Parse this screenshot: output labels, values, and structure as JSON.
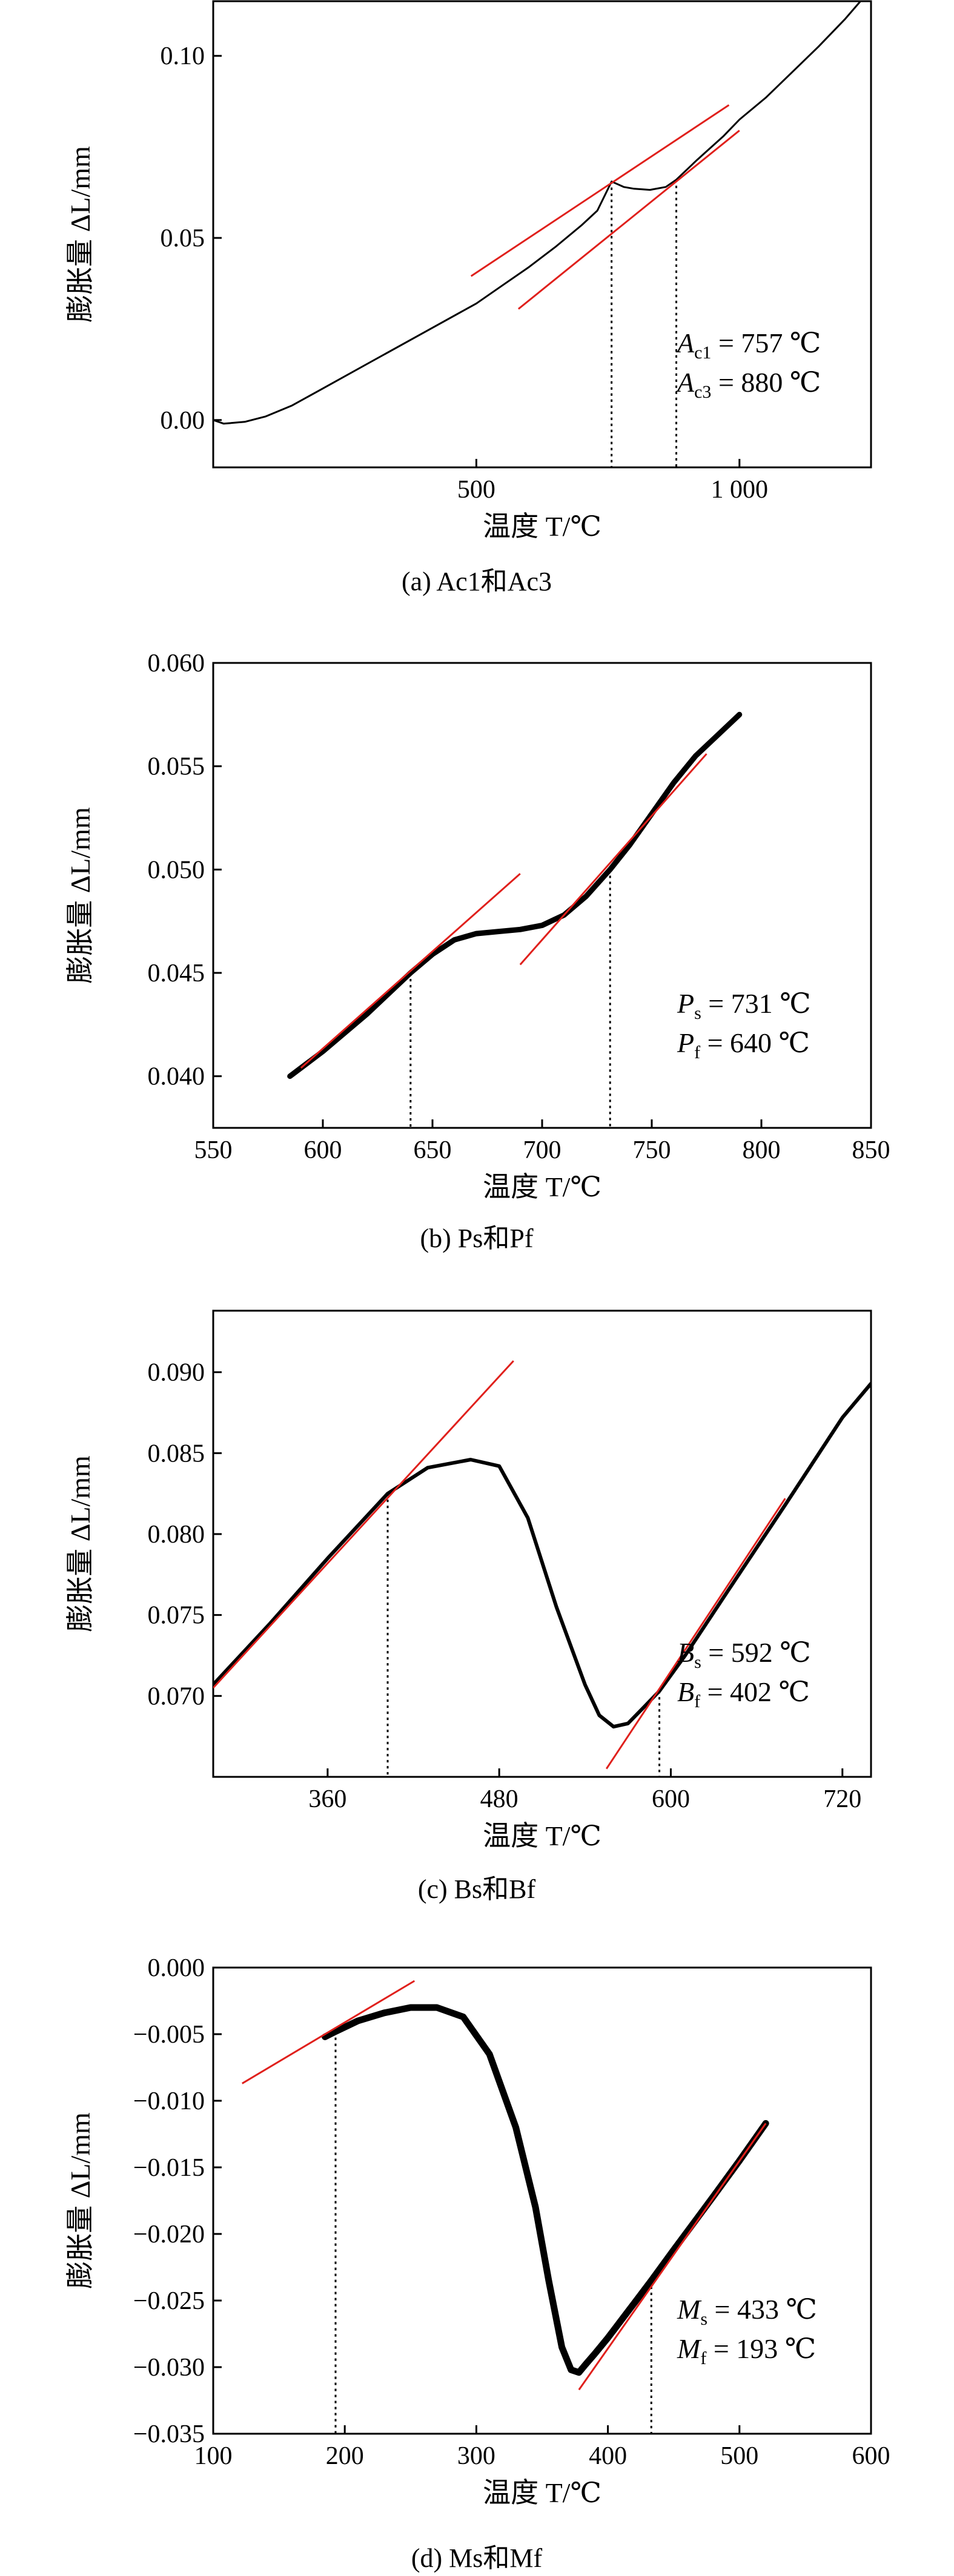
{
  "chart_data": [
    {
      "id": "a",
      "type": "line",
      "caption": "(a) Ac1和Ac3",
      "xlabel": "温度 T/℃",
      "ylabel": "膨胀量 ΔL/mm",
      "xlim": [
        0,
        1250
      ],
      "ylim": [
        -0.013,
        0.115
      ],
      "xticks": [
        500,
        1000
      ],
      "xtick_labels": [
        "500",
        "1 000"
      ],
      "yticks": [
        0.0,
        0.05,
        0.1
      ],
      "ytick_labels": [
        "0.00",
        "0.05",
        "0.10"
      ],
      "series": [
        {
          "x": [
            0,
            20,
            60,
            100,
            150,
            200,
            300,
            400,
            500,
            550,
            600,
            650,
            700,
            730,
            757,
            780,
            800,
            830,
            860,
            880,
            920,
            970,
            1000,
            1050,
            1100,
            1150,
            1200,
            1230
          ],
          "y": [
            0.0,
            -0.001,
            -0.0005,
            0.001,
            0.004,
            0.008,
            0.016,
            0.024,
            0.032,
            0.037,
            0.042,
            0.0475,
            0.0535,
            0.0575,
            0.0655,
            0.064,
            0.0635,
            0.0632,
            0.064,
            0.066,
            0.0715,
            0.078,
            0.0825,
            0.0885,
            0.0955,
            0.1025,
            0.11,
            0.115
          ]
        }
      ],
      "tangents": [
        {
          "x": [
            490,
            980
          ],
          "y": [
            0.0395,
            0.0865
          ]
        },
        {
          "x": [
            580,
            1000
          ],
          "y": [
            0.0305,
            0.0795
          ]
        }
      ],
      "markers": [
        {
          "x": 757,
          "y": 0.0655
        },
        {
          "x": 880,
          "y": 0.066
        }
      ],
      "annotations": [
        {
          "symbol": "A",
          "sub": "c1",
          "text": " = 757 ℃"
        },
        {
          "symbol": "A",
          "sub": "c3",
          "text": " = 880 ℃"
        }
      ]
    },
    {
      "id": "b",
      "type": "line",
      "caption": "(b) Ps和Pf",
      "xlabel": "温度 T/℃",
      "ylabel": "膨胀量 ΔL/mm",
      "xlim": [
        550,
        850
      ],
      "ylim": [
        0.0375,
        0.06
      ],
      "xticks": [
        550,
        600,
        650,
        700,
        750,
        800,
        850
      ],
      "xtick_labels": [
        "550",
        "600",
        "650",
        "700",
        "750",
        "800",
        "850"
      ],
      "yticks": [
        0.04,
        0.045,
        0.05,
        0.055,
        0.06
      ],
      "ytick_labels": [
        "0.040",
        "0.045",
        "0.050",
        "0.055",
        "0.060"
      ],
      "series": [
        {
          "x": [
            585,
            600,
            620,
            640,
            650,
            660,
            670,
            680,
            690,
            700,
            710,
            720,
            731,
            740,
            750,
            760,
            770,
            780,
            790
          ],
          "y": [
            0.04,
            0.0412,
            0.043,
            0.045,
            0.0459,
            0.0466,
            0.0469,
            0.047,
            0.0471,
            0.0473,
            0.0478,
            0.0487,
            0.05,
            0.0512,
            0.0527,
            0.0542,
            0.0555,
            0.0565,
            0.0575
          ]
        }
      ],
      "tangents": [
        {
          "x": [
            590,
            690
          ],
          "y": [
            0.0404,
            0.0498
          ]
        },
        {
          "x": [
            690,
            775
          ],
          "y": [
            0.0454,
            0.0556
          ]
        }
      ],
      "markers": [
        {
          "x": 640,
          "y": 0.045
        },
        {
          "x": 731,
          "y": 0.05
        }
      ],
      "annotations": [
        {
          "symbol": "P",
          "sub": "s",
          "text": " = 731 ℃"
        },
        {
          "symbol": "P",
          "sub": "f",
          "text": " = 640 ℃"
        }
      ]
    },
    {
      "id": "c",
      "type": "line",
      "caption": "(c) Bs和Bf",
      "xlabel": "温度 T/℃",
      "ylabel": "膨胀量 ΔL/mm",
      "xlim": [
        280,
        740
      ],
      "ylim": [
        0.065,
        0.0938
      ],
      "xticks": [
        360,
        480,
        600,
        720
      ],
      "xtick_labels": [
        "360",
        "480",
        "600",
        "720"
      ],
      "yticks": [
        0.07,
        0.075,
        0.08,
        0.085,
        0.09
      ],
      "ytick_labels": [
        "0.070",
        "0.075",
        "0.080",
        "0.085",
        "0.090"
      ],
      "series": [
        {
          "x": [
            280,
            320,
            360,
            402,
            430,
            460,
            480,
            500,
            520,
            540,
            550,
            560,
            570,
            580,
            592,
            610,
            640,
            680,
            720,
            740
          ],
          "y": [
            0.0707,
            0.0745,
            0.0785,
            0.0825,
            0.0841,
            0.0846,
            0.0842,
            0.081,
            0.0755,
            0.0707,
            0.0688,
            0.0681,
            0.0683,
            0.0692,
            0.0703,
            0.0725,
            0.0765,
            0.0818,
            0.0872,
            0.0893
          ]
        }
      ],
      "tangents": [
        {
          "x": [
            280,
            490
          ],
          "y": [
            0.0705,
            0.0907
          ]
        },
        {
          "x": [
            555,
            680
          ],
          "y": [
            0.0655,
            0.0822
          ]
        }
      ],
      "markers": [
        {
          "x": 402,
          "y": 0.0825
        },
        {
          "x": 592,
          "y": 0.0703
        }
      ],
      "annotations": [
        {
          "symbol": "B",
          "sub": "s",
          "text": " = 592 ℃"
        },
        {
          "symbol": "B",
          "sub": "f",
          "text": " = 402 ℃"
        }
      ]
    },
    {
      "id": "d",
      "type": "line",
      "caption": "(d) Ms和Mf",
      "xlabel": "温度 T/℃",
      "ylabel": "膨胀量 ΔL/mm",
      "xlim": [
        100,
        600
      ],
      "ylim": [
        -0.035,
        0.0
      ],
      "xticks": [
        100,
        200,
        300,
        400,
        500,
        600
      ],
      "xtick_labels": [
        "100",
        "200",
        "300",
        "400",
        "500",
        "600"
      ],
      "yticks": [
        0.0,
        -0.005,
        -0.01,
        -0.015,
        -0.02,
        -0.025,
        -0.03,
        -0.035
      ],
      "ytick_labels": [
        "0.000",
        "−0.005",
        "−0.010",
        "−0.015",
        "−0.020",
        "−0.025",
        "−0.030",
        "−0.035"
      ],
      "series": [
        {
          "x": [
            185,
            193,
            210,
            230,
            250,
            270,
            290,
            310,
            330,
            345,
            355,
            365,
            372,
            378,
            383,
            390,
            400,
            420,
            433,
            450,
            480,
            500,
            520
          ],
          "y": [
            -0.0052,
            -0.0048,
            -0.004,
            -0.0034,
            -0.003,
            -0.003,
            -0.0037,
            -0.0065,
            -0.012,
            -0.018,
            -0.0235,
            -0.0285,
            -0.0302,
            -0.0304,
            -0.0298,
            -0.029,
            -0.0278,
            -0.0252,
            -0.0235,
            -0.0212,
            -0.0172,
            -0.0145,
            -0.0117
          ]
        }
      ],
      "tangents": [
        {
          "x": [
            122,
            253
          ],
          "y": [
            -0.0087,
            -0.001
          ]
        },
        {
          "x": [
            378,
            520
          ],
          "y": [
            -0.0317,
            -0.0117
          ]
        }
      ],
      "markers": [
        {
          "x": 193,
          "y": -0.0048
        },
        {
          "x": 433,
          "y": -0.0235
        }
      ],
      "annotations": [
        {
          "symbol": "M",
          "sub": "s",
          "text": " = 433 ℃"
        },
        {
          "symbol": "M",
          "sub": "f",
          "text": " = 193 ℃"
        }
      ]
    }
  ]
}
